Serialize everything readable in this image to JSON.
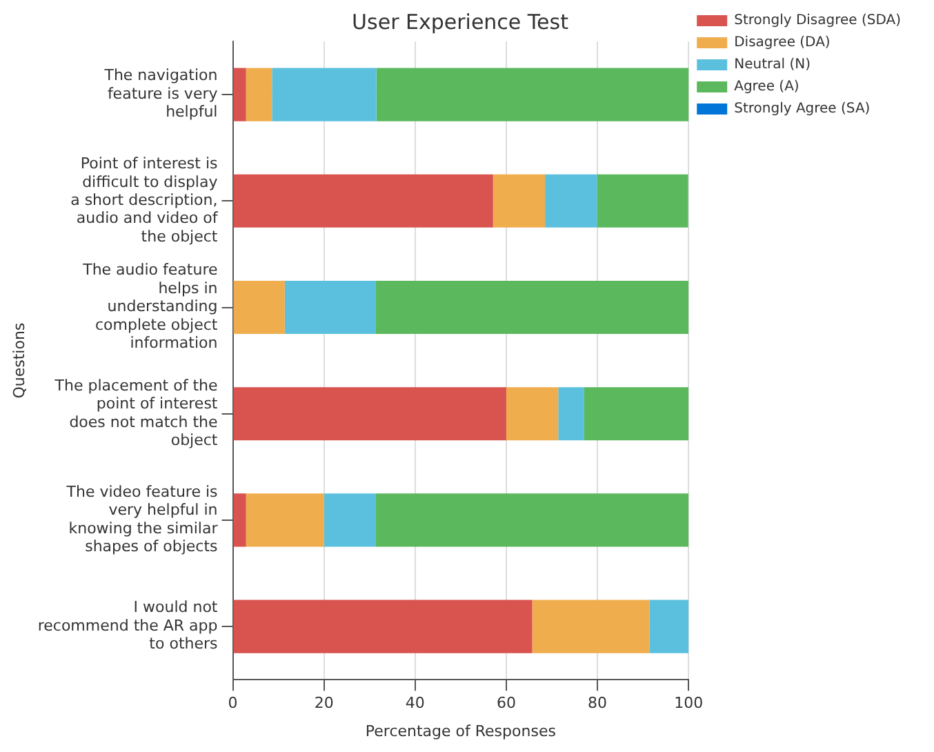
{
  "chart_data": {
    "type": "bar",
    "orientation": "horizontal",
    "stacked": true,
    "title": "User Experience Test",
    "xlabel": "Percentage of Responses",
    "ylabel": "Questions",
    "categories": [
      "The navigation feature is very helpful",
      "Point of interest is difficult to display a short description, audio and video of the object",
      "The audio feature helps in understanding complete object information",
      "The placement of the point of interest does not match the object",
      "The video feature is very helpful in knowing the similar shapes of objects",
      "I would not recommend the AR app to others"
    ],
    "series": [
      {
        "name": "Strongly Disagree (SDA)",
        "color": "#d9534f",
        "values": [
          2.9,
          57.1,
          0,
          60.0,
          2.9,
          65.7
        ]
      },
      {
        "name": "Disagree (DA)",
        "color": "#f0ad4e",
        "values": [
          5.7,
          11.4,
          11.4,
          11.4,
          17.1,
          25.7
        ]
      },
      {
        "name": "Neutral (N)",
        "color": "#5bc0de",
        "values": [
          22.9,
          11.4,
          20.0,
          5.7,
          11.4,
          8.6
        ]
      },
      {
        "name": "Agree (A)",
        "color": "#5cb85c",
        "values": [
          68.6,
          20.0,
          68.6,
          22.9,
          68.6,
          0
        ]
      },
      {
        "name": "Strongly Agree (SA)",
        "color": "#0275d8",
        "values": [
          0,
          0,
          0,
          0,
          0,
          0
        ]
      }
    ],
    "xlim": [
      0,
      100
    ],
    "xticks": [
      0,
      20,
      40,
      60,
      80,
      100
    ],
    "grid": true,
    "legend": "top right"
  }
}
